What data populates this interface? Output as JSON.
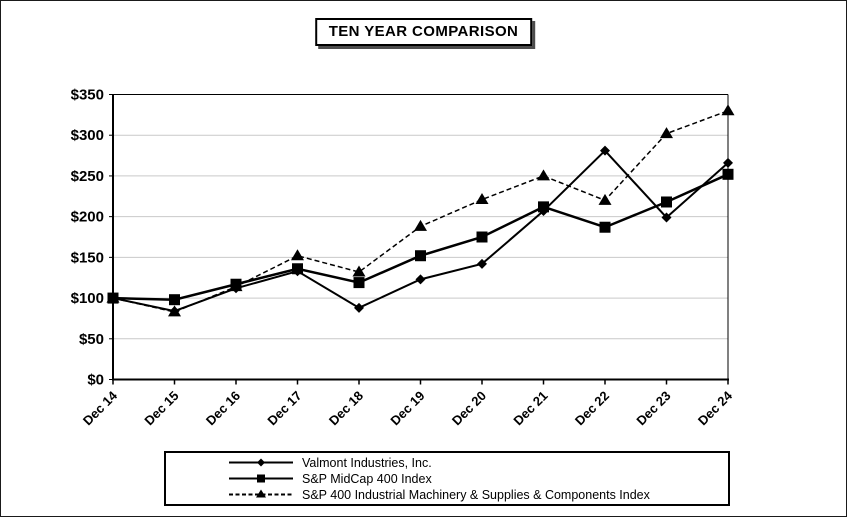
{
  "title": "TEN YEAR COMPARISON",
  "chart_data": {
    "type": "line",
    "title": "TEN YEAR COMPARISON",
    "x": [
      "Dec 14",
      "Dec 15",
      "Dec 16",
      "Dec 17",
      "Dec 18",
      "Dec 19",
      "Dec 20",
      "Dec 21",
      "Dec 22",
      "Dec 23",
      "Dec 24"
    ],
    "series": [
      {
        "name": "Valmont Industries, Inc.",
        "marker": "diamond",
        "line": "solid",
        "values": [
          100,
          84,
          112,
          133,
          88,
          123,
          142,
          207,
          281,
          199,
          266
        ]
      },
      {
        "name": "S&P MidCap 400 Index",
        "marker": "square",
        "line": "solid",
        "values": [
          100,
          98,
          117,
          136,
          119,
          152,
          175,
          212,
          187,
          218,
          252
        ]
      },
      {
        "name": "S&P 400 Industrial Machinery & Supplies & Components Index",
        "marker": "triangle",
        "line": "dashed",
        "values": [
          100,
          83,
          114,
          152,
          132,
          188,
          221,
          250,
          220,
          302,
          330
        ]
      }
    ],
    "ylim": [
      0,
      350
    ],
    "ytick_step": 50,
    "ytick_labels": [
      "$0",
      "$50",
      "$100",
      "$150",
      "$200",
      "$250",
      "$300",
      "$350"
    ],
    "grid": "horizontal",
    "legend_position": "bottom",
    "line_color": "#000000",
    "grid_color": "#c9c9c9",
    "axis_color": "#000000"
  }
}
